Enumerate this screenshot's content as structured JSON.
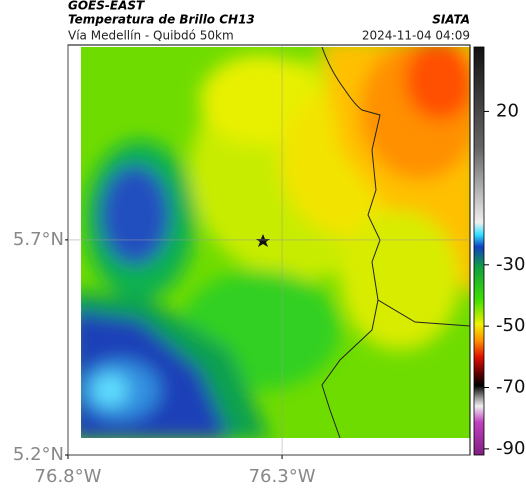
{
  "header": {
    "source": "GOES-EAST",
    "title": "Temperatura de Brillo CH13",
    "org": "SIATA",
    "subtitle": "Vía Medellín - Quibdó 50km",
    "timestamp": "2024-11-04 04:09"
  },
  "map": {
    "xlim": [
      -76.8,
      -75.861
    ],
    "ylim": [
      5.2,
      6.153
    ],
    "xticks": [
      {
        "value": -76.8,
        "label": "76.8°W"
      },
      {
        "value": -76.3,
        "label": "76.3°W"
      }
    ],
    "yticks": [
      {
        "value": 5.7,
        "label": "5.7°N"
      },
      {
        "value": 5.2,
        "label": "5.2°N"
      }
    ],
    "grid": true
  },
  "colorbar": {
    "lim": [
      -92,
      41
    ],
    "ticks": [
      20,
      -30,
      -50,
      -70,
      -90
    ]
  }
}
